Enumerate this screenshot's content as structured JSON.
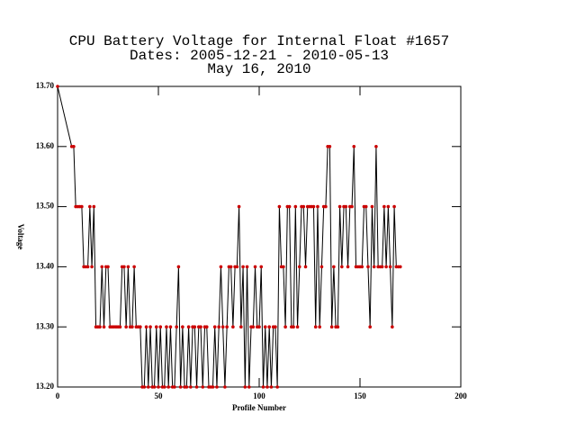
{
  "chart_data": {
    "type": "line",
    "title": [
      "CPU Battery Voltage for Internal Float #1657",
      "Dates:  2005-12-21 -  2010-05-13",
      "May 16, 2010"
    ],
    "xlabel": "Profile Number",
    "ylabel": "Voltage",
    "xlim": [
      0,
      200
    ],
    "xticks": [
      0,
      50,
      100,
      150,
      200
    ],
    "ylim": [
      13.2,
      13.7
    ],
    "yticks": [
      {
        "value": 13.2,
        "label": "13.20"
      },
      {
        "value": 13.3,
        "label": "13.30"
      },
      {
        "value": 13.4,
        "label": "13.40"
      },
      {
        "value": 13.5,
        "label": "13.50"
      },
      {
        "value": 13.6,
        "label": "13.60"
      },
      {
        "value": 13.7,
        "label": "13.70"
      }
    ],
    "series": [
      {
        "color": "#000000",
        "marker_color": "#cc0000",
        "x": [
          0,
          7,
          8,
          9,
          10,
          11,
          12,
          13,
          14,
          15,
          16,
          17,
          18,
          19,
          20,
          21,
          22,
          23,
          24,
          25,
          26,
          27,
          28,
          29,
          30,
          31,
          32,
          33,
          34,
          35,
          36,
          37,
          38,
          39,
          40,
          41,
          42,
          43,
          44,
          45,
          46,
          47,
          48,
          49,
          50,
          51,
          52,
          53,
          54,
          55,
          56,
          57,
          58,
          59,
          60,
          61,
          62,
          63,
          64,
          65,
          66,
          67,
          68,
          69,
          70,
          71,
          72,
          73,
          74,
          75,
          76,
          77,
          78,
          79,
          80,
          81,
          82,
          83,
          84,
          85,
          86,
          87,
          88,
          89,
          90,
          91,
          92,
          93,
          94,
          95,
          96,
          97,
          98,
          99,
          100,
          101,
          102,
          103,
          104,
          105,
          106,
          107,
          108,
          109,
          110,
          111,
          112,
          113,
          114,
          115,
          116,
          117,
          118,
          119,
          120,
          121,
          122,
          123,
          124,
          125,
          126,
          127,
          128,
          129,
          130,
          131,
          132,
          133,
          134,
          135,
          136,
          137,
          138,
          139,
          140,
          141,
          142,
          143,
          144,
          145,
          146,
          147,
          148,
          149,
          150,
          151,
          152,
          153,
          154,
          155,
          156,
          157,
          158,
          159,
          160,
          161,
          162,
          163,
          164,
          165,
          166,
          167,
          168,
          169,
          170
        ],
        "values": [
          13.7,
          13.6,
          13.6,
          13.5,
          13.5,
          13.5,
          13.5,
          13.4,
          13.4,
          13.4,
          13.5,
          13.4,
          13.5,
          13.3,
          13.3,
          13.3,
          13.4,
          13.3,
          13.4,
          13.4,
          13.3,
          13.3,
          13.3,
          13.3,
          13.3,
          13.3,
          13.4,
          13.4,
          13.3,
          13.4,
          13.3,
          13.3,
          13.4,
          13.3,
          13.3,
          13.3,
          13.2,
          13.2,
          13.3,
          13.2,
          13.3,
          13.2,
          13.2,
          13.3,
          13.2,
          13.3,
          13.2,
          13.2,
          13.3,
          13.2,
          13.3,
          13.2,
          13.2,
          13.3,
          13.4,
          13.2,
          13.3,
          13.2,
          13.2,
          13.3,
          13.2,
          13.3,
          13.3,
          13.2,
          13.3,
          13.3,
          13.2,
          13.3,
          13.3,
          13.2,
          13.2,
          13.2,
          13.3,
          13.2,
          13.3,
          13.4,
          13.3,
          13.2,
          13.3,
          13.4,
          13.4,
          13.3,
          13.4,
          13.4,
          13.5,
          13.3,
          13.4,
          13.2,
          13.4,
          13.2,
          13.3,
          13.3,
          13.4,
          13.3,
          13.3,
          13.4,
          13.2,
          13.3,
          13.2,
          13.3,
          13.2,
          13.3,
          13.3,
          13.2,
          13.5,
          13.4,
          13.4,
          13.3,
          13.5,
          13.5,
          13.3,
          13.3,
          13.5,
          13.3,
          13.4,
          13.5,
          13.5,
          13.4,
          13.5,
          13.5,
          13.5,
          13.5,
          13.3,
          13.5,
          13.3,
          13.4,
          13.5,
          13.5,
          13.6,
          13.6,
          13.3,
          13.4,
          13.3,
          13.3,
          13.5,
          13.4,
          13.5,
          13.5,
          13.4,
          13.5,
          13.5,
          13.6,
          13.4,
          13.4,
          13.4,
          13.4,
          13.5,
          13.5,
          13.4,
          13.3,
          13.5,
          13.4,
          13.6,
          13.4,
          13.4,
          13.4,
          13.5,
          13.4,
          13.5,
          13.4,
          13.3,
          13.5,
          13.4,
          13.4,
          13.4
        ]
      }
    ]
  }
}
